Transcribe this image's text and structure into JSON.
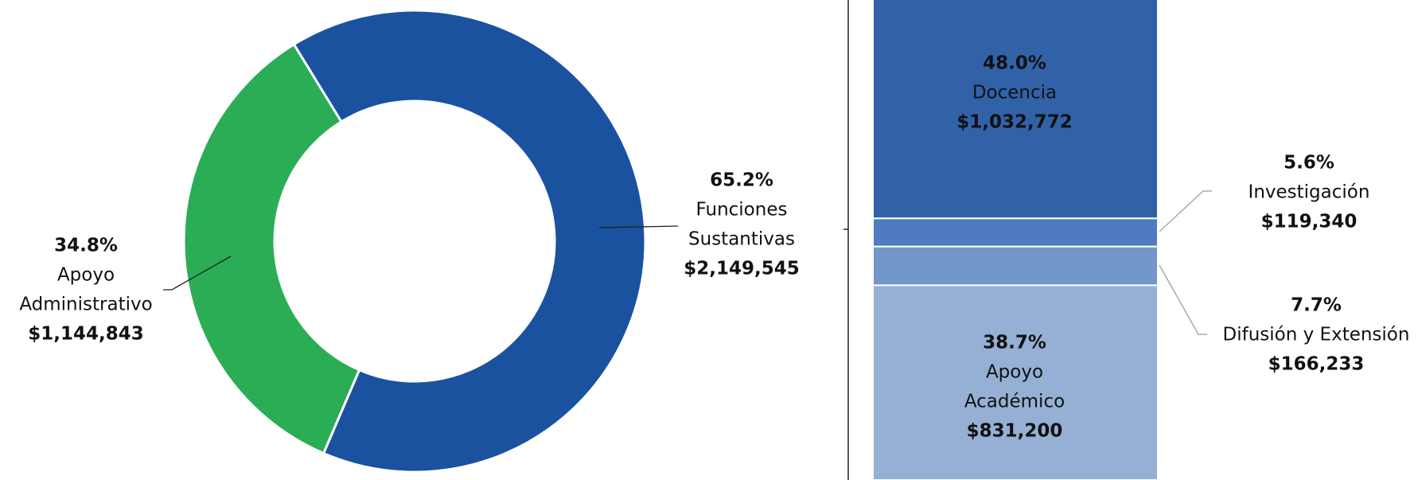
{
  "chart_data": [
    {
      "type": "pie",
      "categories": [
        [
          "Funciones",
          "Sustantivas"
        ],
        [
          "Apoyo",
          "Administrativo"
        ]
      ],
      "values": [
        65.2,
        34.8
      ],
      "value_labels": [
        "65.2%",
        "34.8%"
      ],
      "amounts": [
        2149545,
        1144843
      ],
      "amount_labels": [
        "$2,149,545",
        "$1,144,843"
      ],
      "colors": [
        "#1a52a0",
        "#2bad55"
      ]
    },
    {
      "type": "stacked_bar",
      "categories": [
        [
          "Docencia"
        ],
        [
          "Investigación"
        ],
        [
          "Difusión y Extensión"
        ],
        [
          "Apoyo",
          "Académico"
        ]
      ],
      "values": [
        48.0,
        5.6,
        7.7,
        38.7
      ],
      "value_labels": [
        "48.0%",
        "5.6%",
        "7.7%",
        "38.7%"
      ],
      "amounts": [
        1032772,
        119340,
        166233,
        831200
      ],
      "amount_labels": [
        "$1,032,772",
        "$119,340",
        "$166,233",
        "$831,200"
      ],
      "colors": [
        "#3162a8",
        "#4f7cc0",
        "#7297c8",
        "#95b0d4"
      ]
    }
  ]
}
